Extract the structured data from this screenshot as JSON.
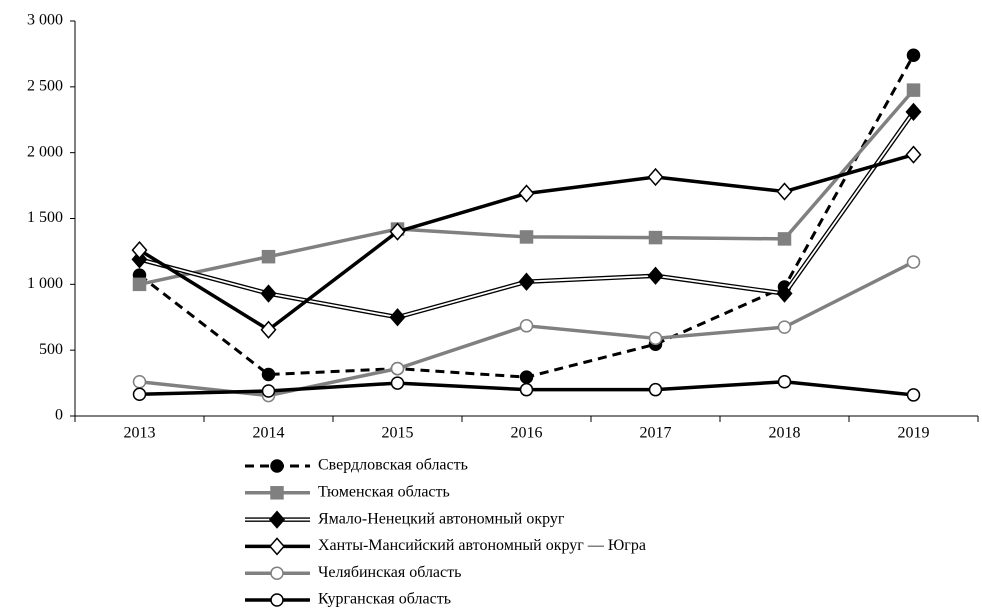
{
  "chart_data": {
    "type": "line",
    "categories": [
      "2013",
      "2014",
      "2015",
      "2016",
      "2017",
      "2018",
      "2019"
    ],
    "ylim": [
      0,
      3000
    ],
    "yticks": [
      0,
      500,
      {
        "value": 1000,
        "label": "1 000"
      },
      {
        "value": 1500,
        "label": "1 500"
      },
      {
        "value": 2000,
        "label": "2 000"
      },
      {
        "value": 2500,
        "label": "2 500"
      },
      {
        "value": 3000,
        "label": "3 000"
      }
    ],
    "grid": false,
    "legend": "bottom",
    "series": [
      {
        "name": "Свердловская область",
        "color": "#000000",
        "line_style": "dashed",
        "marker": "circle",
        "marker_fill": "#000000",
        "values": [
          1070,
          315,
          360,
          295,
          545,
          980,
          2740
        ]
      },
      {
        "name": "Тюменская область",
        "color": "#808080",
        "line_style": "solid",
        "marker": "square",
        "marker_fill": "#808080",
        "values": [
          1000,
          1210,
          1420,
          1360,
          1355,
          1345,
          2475
        ]
      },
      {
        "name": "Ямало-Ненецкий автономный округ",
        "color": "#000000",
        "line_style": "double",
        "marker": "diamond",
        "marker_fill": "#000000",
        "values": [
          1190,
          930,
          750,
          1020,
          1065,
          930,
          2310
        ]
      },
      {
        "name": "Ханты-Мансийский автономный округ — Югра",
        "color": "#000000",
        "line_style": "solid",
        "marker": "diamond",
        "marker_fill": "#ffffff",
        "values": [
          1260,
          655,
          1400,
          1690,
          1815,
          1705,
          1985
        ]
      },
      {
        "name": "Челябинская область",
        "color": "#808080",
        "line_style": "solid",
        "marker": "circle",
        "marker_fill": "#ffffff",
        "values": [
          260,
          155,
          360,
          685,
          590,
          675,
          1170
        ]
      },
      {
        "name": "Курганская область",
        "color": "#000000",
        "line_style": "solid",
        "marker": "circle",
        "marker_fill": "#ffffff",
        "values": [
          165,
          190,
          250,
          200,
          200,
          260,
          160
        ]
      }
    ]
  }
}
